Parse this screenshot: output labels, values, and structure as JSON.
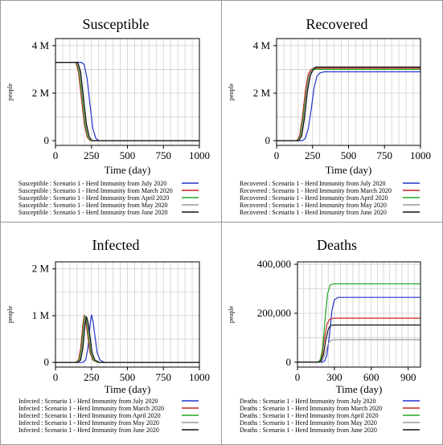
{
  "colors": {
    "July 2020": "#2233cc",
    "March 2020": "#cc2222",
    "April 2020": "#22aa22",
    "May 2020": "#9a9a9a",
    "June 2020": "#111111"
  },
  "chart_data": [
    {
      "type": "line",
      "title": "Susceptible",
      "xlabel": "Time (day)",
      "ylabel": "people",
      "xlim": [
        0,
        1000
      ],
      "ylim": [
        -0.2,
        4.3
      ],
      "xticks": [
        0,
        250,
        500,
        750,
        1000
      ],
      "xtick_labels": [
        "0",
        "250",
        "500",
        "750",
        "1000"
      ],
      "yticks": [
        0,
        2,
        4
      ],
      "ytick_labels": [
        "0",
        "2 M",
        "4 M"
      ],
      "grid_x": [
        50,
        100,
        150,
        200,
        250,
        300,
        350,
        400,
        450,
        500,
        550,
        600,
        650,
        700,
        750,
        800,
        850,
        900,
        950
      ],
      "grid_y": [
        1,
        2,
        3,
        4
      ],
      "grid": true,
      "legend_position": "bottom",
      "series": [
        {
          "name": "Susceptible : Scenario 1 - Herd Immunity from July 2020",
          "color_key": "July 2020",
          "x": [
            0,
            180,
            200,
            220,
            240,
            260,
            280,
            300,
            1000
          ],
          "y": [
            3.3,
            3.3,
            3.2,
            2.6,
            1.5,
            0.5,
            0.1,
            0.0,
            0.0
          ]
        },
        {
          "name": "Susceptible : Scenario 1 - Herd Immunity from March 2020",
          "color_key": "March 2020",
          "x": [
            0,
            140,
            160,
            180,
            200,
            220,
            240,
            1000
          ],
          "y": [
            3.3,
            3.3,
            2.9,
            1.8,
            0.7,
            0.15,
            0.0,
            0.0
          ]
        },
        {
          "name": "Susceptible : Scenario 1 - Herd Immunity from April 2020",
          "color_key": "April 2020",
          "x": [
            0,
            145,
            165,
            185,
            205,
            225,
            245,
            1000
          ],
          "y": [
            3.3,
            3.3,
            2.9,
            1.8,
            0.7,
            0.15,
            0.0,
            0.0
          ]
        },
        {
          "name": "Susceptible : Scenario 1 - Herd Immunity from May 2020",
          "color_key": "May 2020",
          "x": [
            0,
            150,
            170,
            190,
            210,
            230,
            250,
            1000
          ],
          "y": [
            3.3,
            3.3,
            2.9,
            1.8,
            0.7,
            0.15,
            0.0,
            0.0
          ]
        },
        {
          "name": "Susceptible : Scenario 1 - Herd Immunity from June 2020",
          "color_key": "June 2020",
          "x": [
            0,
            155,
            175,
            195,
            215,
            235,
            255,
            1000
          ],
          "y": [
            3.3,
            3.3,
            2.9,
            1.8,
            0.7,
            0.15,
            0.0,
            0.0
          ]
        }
      ]
    },
    {
      "type": "line",
      "title": "Recovered",
      "xlabel": "Time (day)",
      "ylabel": "people",
      "xlim": [
        0,
        1000
      ],
      "ylim": [
        -0.2,
        4.3
      ],
      "xticks": [
        0,
        250,
        500,
        750,
        1000
      ],
      "xtick_labels": [
        "0",
        "250",
        "500",
        "750",
        "1000"
      ],
      "yticks": [
        0,
        2,
        4
      ],
      "ytick_labels": [
        "0",
        "2 M",
        "4 M"
      ],
      "grid_x": [
        50,
        100,
        150,
        200,
        250,
        300,
        350,
        400,
        450,
        500,
        550,
        600,
        650,
        700,
        750,
        800,
        850,
        900,
        950
      ],
      "grid_y": [
        1,
        2,
        3,
        4
      ],
      "grid": true,
      "legend_position": "bottom",
      "series": [
        {
          "name": "Recovered : Scenario 1 - Herd Immunity from July 2020",
          "color_key": "July 2020",
          "x": [
            0,
            180,
            200,
            220,
            240,
            260,
            280,
            300,
            330,
            1000
          ],
          "y": [
            0.0,
            0.0,
            0.1,
            0.5,
            1.3,
            2.2,
            2.7,
            2.85,
            2.9,
            2.9
          ]
        },
        {
          "name": "Recovered : Scenario 1 - Herd Immunity from March 2020",
          "color_key": "March 2020",
          "x": [
            0,
            140,
            160,
            180,
            200,
            220,
            240,
            260,
            280,
            1000
          ],
          "y": [
            0.0,
            0.0,
            0.2,
            1.0,
            2.1,
            2.8,
            3.0,
            3.05,
            3.05,
            3.05
          ]
        },
        {
          "name": "Recovered : Scenario 1 - Herd Immunity from April 2020",
          "color_key": "April 2020",
          "x": [
            0,
            145,
            165,
            185,
            205,
            225,
            245,
            265,
            285,
            1000
          ],
          "y": [
            0.0,
            0.0,
            0.2,
            1.0,
            2.0,
            2.75,
            2.95,
            3.0,
            3.0,
            3.0
          ]
        },
        {
          "name": "Recovered : Scenario 1 - Herd Immunity from May 2020",
          "color_key": "May 2020",
          "x": [
            0,
            150,
            170,
            190,
            210,
            230,
            250,
            270,
            290,
            1000
          ],
          "y": [
            0.0,
            0.0,
            0.2,
            1.0,
            2.1,
            2.8,
            3.05,
            3.1,
            3.1,
            3.1
          ]
        },
        {
          "name": "Recovered : Scenario 1 - Herd Immunity from June 2020",
          "color_key": "June 2020",
          "x": [
            0,
            155,
            175,
            195,
            215,
            235,
            255,
            275,
            295,
            1000
          ],
          "y": [
            0.0,
            0.0,
            0.2,
            1.0,
            2.1,
            2.75,
            3.0,
            3.1,
            3.1,
            3.1
          ]
        }
      ]
    },
    {
      "type": "line",
      "title": "Infected",
      "xlabel": "Time (day)",
      "ylabel": "people",
      "xlim": [
        0,
        1000
      ],
      "ylim": [
        -0.1,
        2.15
      ],
      "xticks": [
        0,
        250,
        500,
        750,
        1000
      ],
      "xtick_labels": [
        "0",
        "250",
        "500",
        "750",
        "1000"
      ],
      "yticks": [
        0,
        1,
        2
      ],
      "ytick_labels": [
        "0",
        "1 M",
        "2 M"
      ],
      "grid_x": [
        50,
        100,
        150,
        200,
        250,
        300,
        350,
        400,
        450,
        500,
        550,
        600,
        650,
        700,
        750,
        800,
        850,
        900,
        950
      ],
      "grid_y": [
        0.5,
        1,
        1.5,
        2
      ],
      "grid": true,
      "legend_position": "bottom",
      "series": [
        {
          "name": "Infected : Scenario 1 - Herd Immunity from July 2020",
          "color_key": "July 2020",
          "x": [
            0,
            190,
            210,
            225,
            240,
            250,
            260,
            275,
            290,
            310,
            340,
            1000
          ],
          "y": [
            0.0,
            0.0,
            0.05,
            0.3,
            0.8,
            1.02,
            0.9,
            0.55,
            0.2,
            0.05,
            0.0,
            0.0
          ]
        },
        {
          "name": "Infected : Scenario 1 - Herd Immunity from March 2020",
          "color_key": "March 2020",
          "x": [
            0,
            140,
            160,
            175,
            190,
            200,
            210,
            225,
            240,
            260,
            290,
            1000
          ],
          "y": [
            0.0,
            0.0,
            0.05,
            0.3,
            0.8,
            1.02,
            0.9,
            0.55,
            0.2,
            0.05,
            0.0,
            0.0
          ]
        },
        {
          "name": "Infected : Scenario 1 - Herd Immunity from April 2020",
          "color_key": "April 2020",
          "x": [
            0,
            145,
            165,
            180,
            195,
            205,
            215,
            230,
            245,
            265,
            295,
            1000
          ],
          "y": [
            0.0,
            0.0,
            0.05,
            0.3,
            0.8,
            1.0,
            0.9,
            0.55,
            0.2,
            0.05,
            0.0,
            0.0
          ]
        },
        {
          "name": "Infected : Scenario 1 - Herd Immunity from May 2020",
          "color_key": "May 2020",
          "x": [
            0,
            150,
            170,
            185,
            200,
            210,
            220,
            235,
            250,
            270,
            300,
            1000
          ],
          "y": [
            0.0,
            0.0,
            0.05,
            0.3,
            0.8,
            0.98,
            0.88,
            0.55,
            0.2,
            0.05,
            0.0,
            0.0
          ]
        },
        {
          "name": "Infected : Scenario 1 - Herd Immunity from June 2020",
          "color_key": "June 2020",
          "x": [
            0,
            155,
            175,
            190,
            205,
            215,
            225,
            240,
            255,
            275,
            305,
            1000
          ],
          "y": [
            0.0,
            0.0,
            0.05,
            0.3,
            0.8,
            0.98,
            0.88,
            0.55,
            0.2,
            0.05,
            0.0,
            0.0
          ]
        }
      ]
    },
    {
      "type": "line",
      "title": "Deaths",
      "xlabel": "Time (day)",
      "ylabel": "people",
      "xlim": [
        0,
        1000
      ],
      "ylim": [
        -20000,
        410000
      ],
      "xticks": [
        0,
        300,
        600,
        900
      ],
      "xtick_labels": [
        "0",
        "300",
        "600",
        "900"
      ],
      "yticks": [
        0,
        200000,
        400000
      ],
      "ytick_labels": [
        "0",
        "200,000",
        "400,000"
      ],
      "grid_x": [
        50,
        100,
        150,
        200,
        250,
        300,
        350,
        400,
        450,
        500,
        550,
        600,
        650,
        700,
        750,
        800,
        850,
        900,
        950
      ],
      "grid_y": [
        100000,
        200000,
        300000,
        400000
      ],
      "grid": true,
      "legend_position": "bottom",
      "series": [
        {
          "name": "Deaths : Scenario 1 - Herd Immunity from July 2020",
          "color_key": "July 2020",
          "x": [
            0,
            200,
            220,
            240,
            260,
            280,
            300,
            330,
            1000
          ],
          "y": [
            0,
            0,
            5000,
            30000,
            110000,
            210000,
            255000,
            265000,
            265000
          ]
        },
        {
          "name": "Deaths : Scenario 1 - Herd Immunity from March 2020",
          "color_key": "March 2020",
          "x": [
            0,
            160,
            180,
            200,
            220,
            240,
            260,
            290,
            1000
          ],
          "y": [
            0,
            0,
            5000,
            30000,
            100000,
            155000,
            175000,
            180000,
            180000
          ]
        },
        {
          "name": "Deaths : Scenario 1 - Herd Immunity from April 2020",
          "color_key": "April 2020",
          "x": [
            0,
            165,
            185,
            205,
            225,
            245,
            265,
            290,
            1000
          ],
          "y": [
            0,
            0,
            8000,
            60000,
            180000,
            280000,
            315000,
            320000,
            320000
          ]
        },
        {
          "name": "Deaths : Scenario 1 - Herd Immunity from May 2020",
          "color_key": "May 2020",
          "x": [
            0,
            175,
            195,
            215,
            235,
            255,
            275,
            300,
            1000
          ],
          "y": [
            0,
            0,
            3000,
            20000,
            55000,
            80000,
            90000,
            92000,
            92000
          ]
        },
        {
          "name": "Deaths : Scenario 1 - Herd Immunity from June 2020",
          "color_key": "June 2020",
          "x": [
            0,
            170,
            190,
            210,
            230,
            250,
            270,
            300,
            1000
          ],
          "y": [
            0,
            0,
            5000,
            30000,
            90000,
            135000,
            150000,
            152000,
            152000
          ]
        }
      ]
    }
  ]
}
